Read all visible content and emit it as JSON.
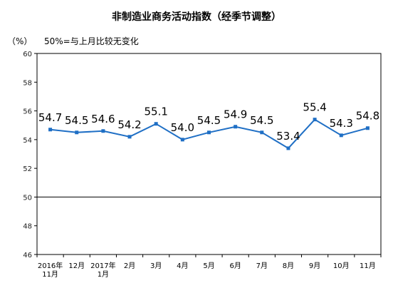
{
  "chart_data": {
    "type": "line",
    "title": "非制造业商务活动指数（经季节调整）",
    "unit": "（%）",
    "note": "50%=与上月比较无变化",
    "categories": [
      [
        "2016年",
        "11月"
      ],
      [
        "12月"
      ],
      [
        "2017年",
        "1月"
      ],
      [
        "2月"
      ],
      [
        "3月"
      ],
      [
        "4月"
      ],
      [
        "5月"
      ],
      [
        "6月"
      ],
      [
        "7月"
      ],
      [
        "8月"
      ],
      [
        "9月"
      ],
      [
        "10月"
      ],
      [
        "11月"
      ]
    ],
    "values": [
      54.7,
      54.5,
      54.6,
      54.2,
      55.1,
      54.0,
      54.5,
      54.9,
      54.5,
      53.4,
      55.4,
      54.3,
      54.8
    ],
    "value_labels": [
      "54.7",
      "54.5",
      "54.6",
      "54.2",
      "55.1",
      "54.0",
      "54.5",
      "54.9",
      "54.5",
      "53.4",
      "55.4",
      "54.3",
      "54.8"
    ],
    "ylim": [
      46,
      60
    ],
    "yticks": [
      46,
      48,
      50,
      52,
      54,
      56,
      58,
      60
    ],
    "baseline": 50,
    "grid": false,
    "colors": {
      "line": "#1F6FC5",
      "axis": "#000000"
    }
  }
}
